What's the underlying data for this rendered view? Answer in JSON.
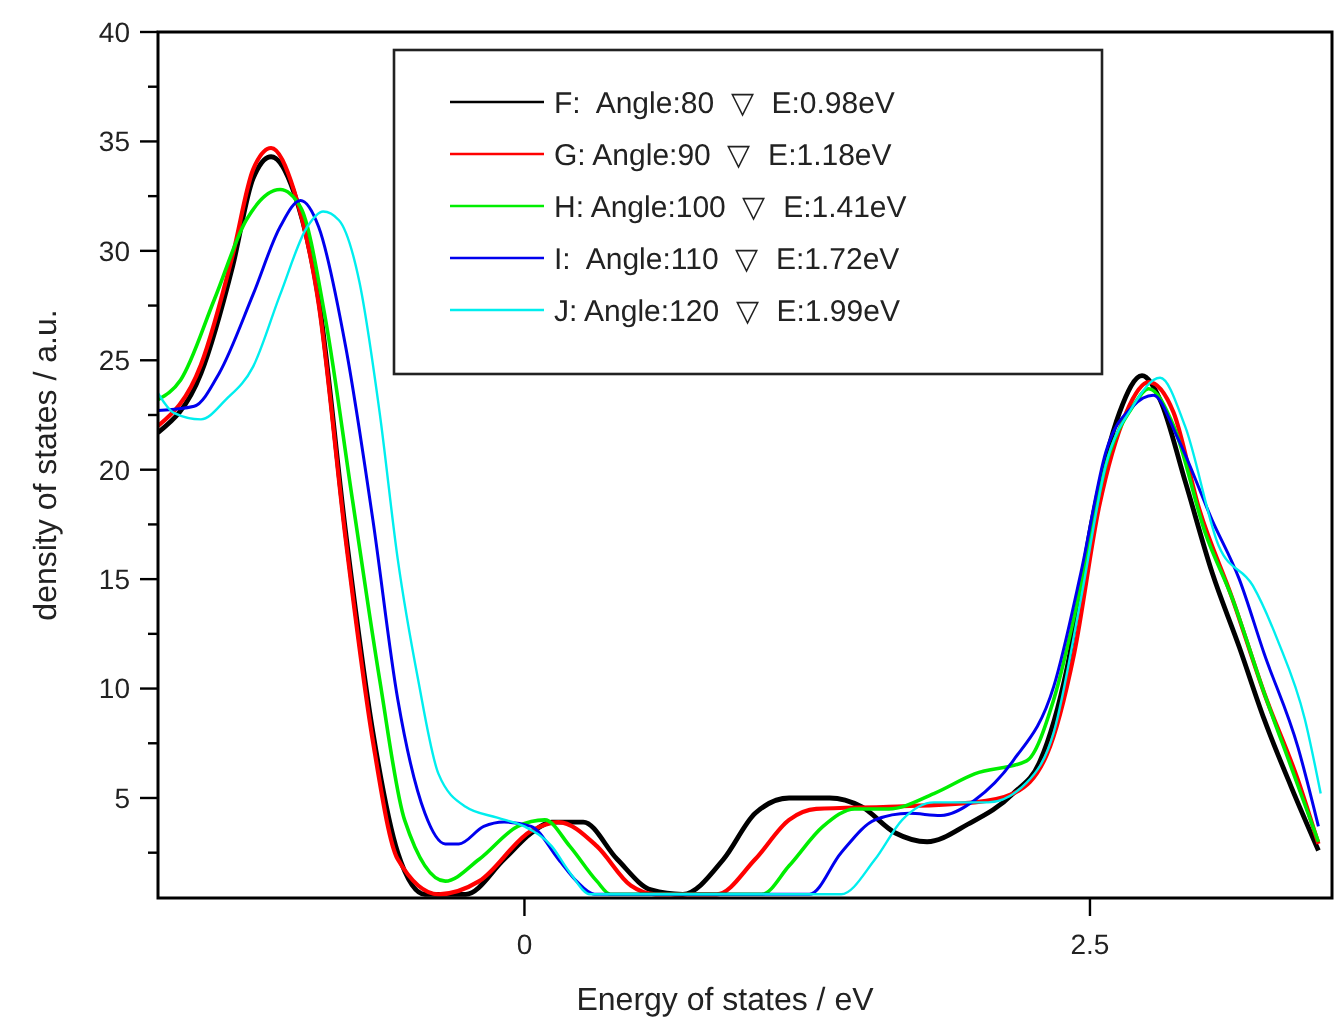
{
  "chart_data": {
    "type": "line",
    "xlabel": "Energy of states / eV",
    "ylabel": "density of states / a.u.",
    "xlim": [
      -1.62,
      3.57
    ],
    "xticks": [
      0,
      2.5
    ],
    "ylim": [
      0.43,
      40
    ],
    "yticks": [
      {
        "value": 2.5,
        "label": null
      },
      5,
      {
        "value": 7.5,
        "label": null
      },
      10,
      {
        "value": 12.5,
        "label": null
      },
      15,
      {
        "value": 17.5,
        "label": null
      },
      20,
      {
        "value": 22.5,
        "label": null
      },
      25,
      {
        "value": 27.5,
        "label": null
      },
      30,
      {
        "value": 32.5,
        "label": null
      },
      35,
      {
        "value": 37.5,
        "label": null
      },
      40
    ],
    "grid": false,
    "legend": "top",
    "marker": "none",
    "line_style": "solid",
    "series": [
      {
        "name": "F:  Angle:80  ▽  E:0.98eV",
        "color": "#000000",
        "x": [
          -1.62,
          -1.43,
          -1.29,
          -1.2,
          -1.12,
          -1.02,
          -0.91,
          -0.79,
          -0.67,
          -0.56,
          -0.44,
          -0.26,
          -0.09,
          0.03,
          0.12,
          0.26,
          0.41,
          0.56,
          0.7,
          0.88,
          1.02,
          1.17,
          1.35,
          1.49,
          1.64,
          1.78,
          1.96,
          2.16,
          2.28,
          2.4,
          2.51,
          2.63,
          2.73,
          2.81,
          2.92,
          3.04,
          3.16,
          3.27,
          3.39,
          3.51
        ],
        "values": [
          21.7,
          24.4,
          29.3,
          33.3,
          34.3,
          32.7,
          27.8,
          17.1,
          8.0,
          2.5,
          0.6,
          0.6,
          2.2,
          3.4,
          3.9,
          3.9,
          2.2,
          0.8,
          0.6,
          2.2,
          4.3,
          5.0,
          5.0,
          4.6,
          3.4,
          3.0,
          3.8,
          5.2,
          6.7,
          11.0,
          17.7,
          22.6,
          24.3,
          23.2,
          19.5,
          15.3,
          11.9,
          8.6,
          5.5,
          2.6
        ]
      },
      {
        "name": "G: Angle:90  ▽  E:1.18eV",
        "color": "#ff0000",
        "x": [
          -1.62,
          -1.43,
          -1.29,
          -1.2,
          -1.12,
          -1.02,
          -0.91,
          -0.79,
          -0.67,
          -0.56,
          -0.38,
          -0.2,
          0.03,
          0.15,
          0.32,
          0.47,
          0.58,
          0.85,
          1.02,
          1.17,
          1.29,
          1.61,
          1.99,
          2.16,
          2.31,
          2.43,
          2.54,
          2.66,
          2.76,
          2.87,
          2.98,
          3.13,
          3.27,
          3.42,
          3.51
        ],
        "values": [
          22.0,
          24.8,
          29.8,
          33.7,
          34.7,
          32.8,
          27.6,
          16.8,
          7.6,
          2.2,
          0.6,
          1.2,
          3.5,
          3.9,
          2.8,
          1.0,
          0.6,
          0.6,
          2.2,
          4.0,
          4.5,
          4.6,
          4.8,
          5.2,
          7.0,
          11.6,
          18.3,
          22.6,
          24.0,
          22.6,
          18.3,
          14.1,
          9.8,
          5.8,
          2.9
        ]
      },
      {
        "name": "H: Angle:100  ▽  E:1.41eV",
        "color": "#00ee00",
        "x": [
          -1.62,
          -1.52,
          -1.37,
          -1.23,
          -1.08,
          -0.99,
          -0.88,
          -0.76,
          -0.64,
          -0.53,
          -0.35,
          -0.2,
          -0.03,
          0.09,
          0.2,
          0.32,
          0.38,
          1.05,
          1.17,
          1.32,
          1.46,
          1.61,
          1.81,
          1.99,
          2.22,
          2.34,
          2.46,
          2.57,
          2.69,
          2.76,
          2.87,
          3.01,
          3.13,
          3.27,
          3.39,
          3.51
        ],
        "values": [
          23.2,
          24.1,
          27.8,
          31.4,
          32.8,
          32.0,
          26.9,
          18.6,
          10.4,
          4.0,
          1.2,
          2.2,
          3.7,
          4.0,
          2.8,
          1.2,
          0.6,
          0.6,
          1.9,
          3.7,
          4.5,
          4.5,
          5.2,
          6.1,
          6.7,
          9.5,
          14.7,
          20.2,
          22.9,
          23.7,
          22.0,
          17.1,
          14.1,
          9.8,
          6.4,
          3.0
        ]
      },
      {
        "name": "I:  Angle:110  ▽  E:1.72eV",
        "color": "#0000ee",
        "x": [
          -1.62,
          -1.46,
          -1.35,
          -1.2,
          -1.08,
          -0.99,
          -0.91,
          -0.79,
          -0.67,
          -0.56,
          -0.44,
          -0.35,
          -0.29,
          -0.18,
          -0.09,
          0.03,
          0.15,
          0.23,
          0.31,
          1.26,
          1.4,
          1.55,
          1.7,
          1.84,
          1.99,
          2.16,
          2.34,
          2.46,
          2.57,
          2.69,
          2.78,
          2.89,
          3.04,
          3.16,
          3.27,
          3.42,
          3.51
        ],
        "values": [
          22.7,
          22.9,
          24.4,
          28.0,
          31.1,
          32.3,
          31.1,
          25.6,
          17.7,
          9.5,
          4.3,
          2.9,
          2.9,
          3.7,
          3.9,
          3.7,
          2.2,
          1.2,
          0.6,
          0.6,
          2.5,
          4.0,
          4.3,
          4.2,
          4.9,
          6.7,
          10.1,
          15.3,
          20.8,
          22.9,
          23.4,
          21.4,
          17.7,
          15.0,
          11.6,
          7.3,
          3.7
        ]
      },
      {
        "name": "J: Angle:120  ▽  E:1.99eV",
        "color": "#00eeee",
        "x": [
          -1.62,
          -1.55,
          -1.43,
          -1.32,
          -1.2,
          -1.08,
          -0.96,
          -0.89,
          -0.82,
          -0.73,
          -0.64,
          -0.56,
          -0.47,
          -0.38,
          -0.26,
          -0.12,
          0.0,
          0.12,
          0.2,
          0.29,
          1.4,
          1.55,
          1.67,
          1.81,
          2.05,
          2.22,
          2.34,
          2.46,
          2.57,
          2.69,
          2.81,
          2.92,
          3.07,
          3.22,
          3.33,
          3.45,
          3.52
        ],
        "values": [
          23.5,
          22.6,
          22.3,
          23.2,
          24.7,
          28.0,
          31.1,
          31.8,
          31.4,
          28.6,
          22.6,
          15.9,
          10.4,
          6.1,
          4.6,
          4.1,
          3.7,
          2.8,
          1.6,
          0.6,
          0.6,
          2.2,
          4.0,
          4.8,
          4.8,
          5.7,
          8.0,
          14.1,
          20.2,
          22.9,
          24.2,
          22.0,
          16.5,
          14.7,
          12.2,
          8.6,
          5.2
        ]
      }
    ]
  }
}
